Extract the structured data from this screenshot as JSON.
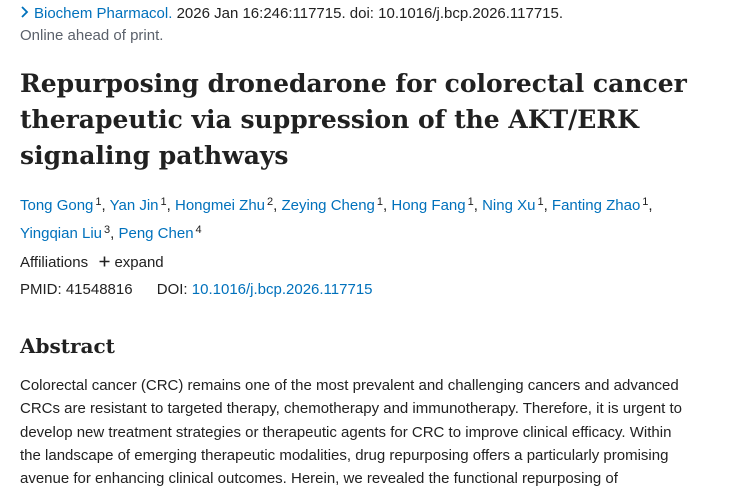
{
  "citation": {
    "journal": "Biochem Pharmacol.",
    "details": "2026 Jan 16:246:117715. doi: 10.1016/j.bcp.2026.117715.",
    "status": "Online ahead of print."
  },
  "article": {
    "title": "Repurposing dronedarone for colorectal cancer therapeutic via suppression of the AKT/ERK signaling pathways"
  },
  "authors": [
    {
      "name": "Tong Gong",
      "sup": "1"
    },
    {
      "name": "Yan Jin",
      "sup": "1"
    },
    {
      "name": "Hongmei Zhu",
      "sup": "2"
    },
    {
      "name": "Zeying Cheng",
      "sup": "1"
    },
    {
      "name": "Hong Fang",
      "sup": "1"
    },
    {
      "name": "Ning Xu",
      "sup": "1"
    },
    {
      "name": "Fanting Zhao",
      "sup": "1"
    },
    {
      "name": "Yingqian Liu",
      "sup": "3"
    },
    {
      "name": "Peng Chen",
      "sup": "4"
    }
  ],
  "affiliations": {
    "label": "Affiliations",
    "expand_label": "expand"
  },
  "identifiers": {
    "pmid_label": "PMID:",
    "pmid": "41548816",
    "doi_label": "DOI:",
    "doi": "10.1016/j.bcp.2026.117715"
  },
  "abstract": {
    "heading": "Abstract",
    "lines": [
      "Colorectal cancer (CRC) remains one of the most prevalent and challenging cancers and advanced",
      "CRCs are resistant to targeted therapy, chemotherapy and immunotherapy. Therefore, it is urgent to",
      "develop new treatment strategies or therapeutic agents for CRC to improve clinical efficacy. Within",
      "the landscape of emerging therapeutic modalities, drug repurposing offers a particularly promising",
      "avenue for enhancing clinical outcomes. Herein, we revealed the functional repurposing of"
    ]
  },
  "colors": {
    "link": "#0071bc",
    "text": "#212121",
    "muted": "#5b616b"
  }
}
